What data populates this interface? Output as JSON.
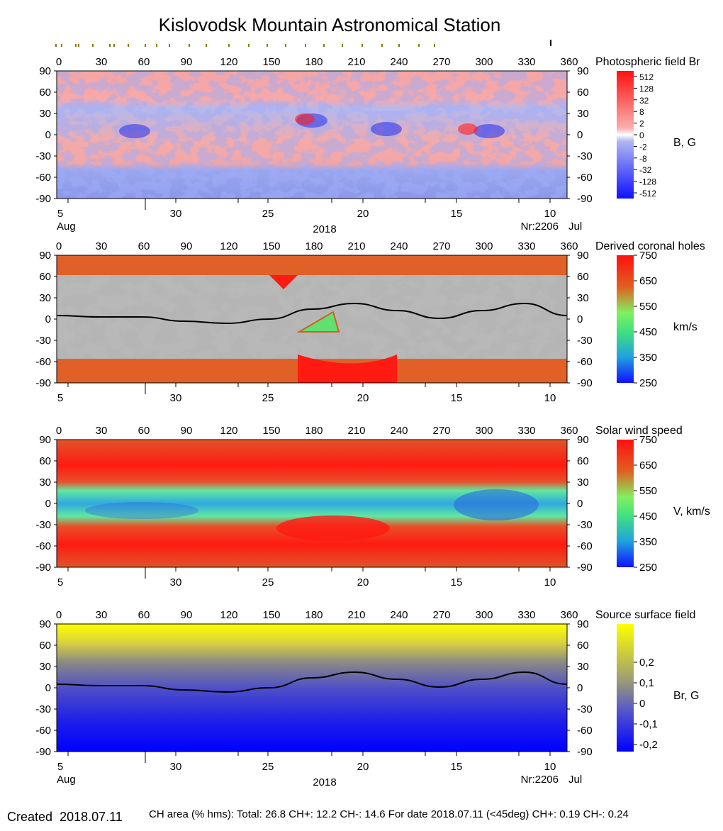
{
  "title": "Kislovodsk Mountain Astronomical Station",
  "lon_ticks": [
    "0",
    "30",
    "60",
    "90",
    "120",
    "150",
    "180",
    "210",
    "240",
    "270",
    "300",
    "330",
    "360"
  ],
  "lat_ticks": [
    "90",
    "60",
    "30",
    "0",
    "-30",
    "-60",
    "-90"
  ],
  "date_ticks": [
    "5",
    "30",
    "25",
    "20",
    "15",
    "10"
  ],
  "month_left": "Aug",
  "month_right": "Jul",
  "year": "2018",
  "rotation": "Nr:2206",
  "panels": [
    {
      "name": "photospheric",
      "title": "Photospheric field Br",
      "unit": "B, G",
      "scale_labels": [
        "512",
        "128",
        "32",
        "8",
        "2",
        "0",
        "-2",
        "-8",
        "-32",
        "-128",
        "-512"
      ],
      "colors": [
        "#ff1010",
        "#f8a0a0",
        "#ffffff",
        "#a8b4f0",
        "#1010ff"
      ]
    },
    {
      "name": "coronal-holes",
      "title": "Derived coronal holes",
      "unit": "km/s",
      "scale_labels": [
        "750",
        "650",
        "550",
        "450",
        "350",
        "250"
      ],
      "colors": [
        "#ff1010",
        "#e06020",
        "#60f060",
        "#20c0c0",
        "#1010ff"
      ]
    },
    {
      "name": "solar-wind",
      "title": "Solar wind speed",
      "unit": "V, km/s",
      "scale_labels": [
        "750",
        "650",
        "550",
        "450",
        "350",
        "250"
      ],
      "colors": [
        "#ff1010",
        "#e06020",
        "#60f060",
        "#20c0c0",
        "#1010ff"
      ]
    },
    {
      "name": "source-surface",
      "title": "Source surface field",
      "unit": "Br, G",
      "scale_labels": [
        "0,2",
        "0,1",
        "0",
        "-0,1",
        "-0,2"
      ],
      "colors": [
        "#ffff00",
        "#909080",
        "#3030e0",
        "#0000ff"
      ]
    }
  ],
  "chart_data": {
    "type": "heatmap",
    "xlim": [
      0,
      360
    ],
    "ylim": [
      -90,
      90
    ],
    "neutral_line": {
      "x": [
        0,
        30,
        60,
        90,
        120,
        150,
        180,
        210,
        240,
        270,
        300,
        330,
        360
      ],
      "y": [
        5,
        3,
        3,
        -3,
        -6,
        0,
        14,
        22,
        12,
        1,
        12,
        22,
        5
      ]
    }
  },
  "footer": {
    "created_label": "Created",
    "created_date": "2018.07.11",
    "stats": "CH area (% hms): Total: 26.8 CH+: 12.2   CH-: 14.6    For date 2018.07.11 (<45deg) CH+: 0.19    CH-: 0.24"
  }
}
